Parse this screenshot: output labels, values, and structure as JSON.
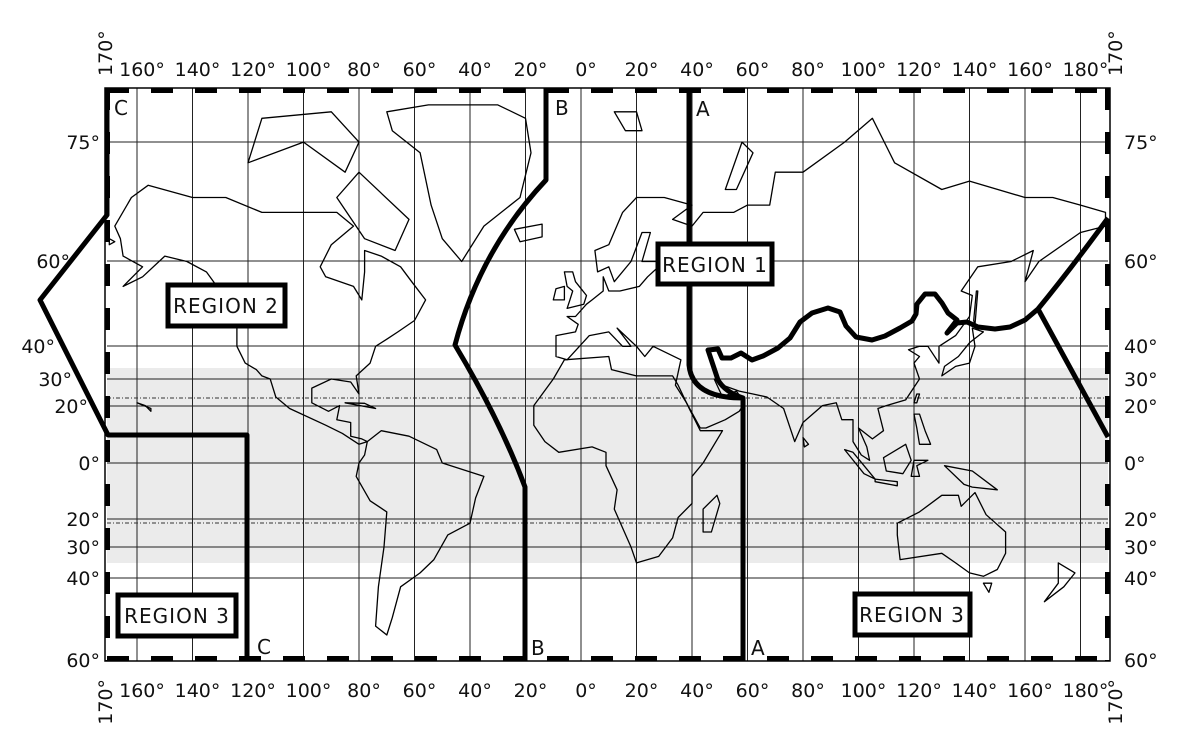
{
  "map": {
    "top_lon_labels": [
      "160°",
      "140°",
      "120°",
      "100°",
      "80°",
      "60°",
      "40°",
      "20°",
      "0°",
      "20°",
      "40°",
      "60°",
      "80°",
      "100°",
      "120°",
      "140°",
      "160°",
      "180°"
    ],
    "edge_lon_label": "170°",
    "lat_labels": [
      {
        "lat": 75,
        "label": "75°"
      },
      {
        "lat": 60,
        "label": "60°"
      },
      {
        "lat": 40,
        "label": "40°"
      },
      {
        "lat": 30,
        "label": "30°"
      },
      {
        "lat": 20,
        "label": "20°"
      },
      {
        "lat": 0,
        "label": "0°"
      },
      {
        "lat": -20,
        "label": "20°"
      },
      {
        "lat": -30,
        "label": "30°"
      },
      {
        "lat": -40,
        "label": "40°"
      },
      {
        "lat": -60,
        "label": "60°"
      }
    ],
    "regions": {
      "region1": "REGION 1",
      "region2": "REGION 2",
      "region3_west": "REGION 3",
      "region3_east": "REGION 3"
    },
    "zone_lines": {
      "a_top": "A",
      "a_bottom": "A",
      "b_top": "B",
      "b_bottom": "B",
      "c_top": "C",
      "c_bottom": "C"
    },
    "colors": {
      "tropical_band": "#ebebeb",
      "boundary": "#000000"
    }
  }
}
